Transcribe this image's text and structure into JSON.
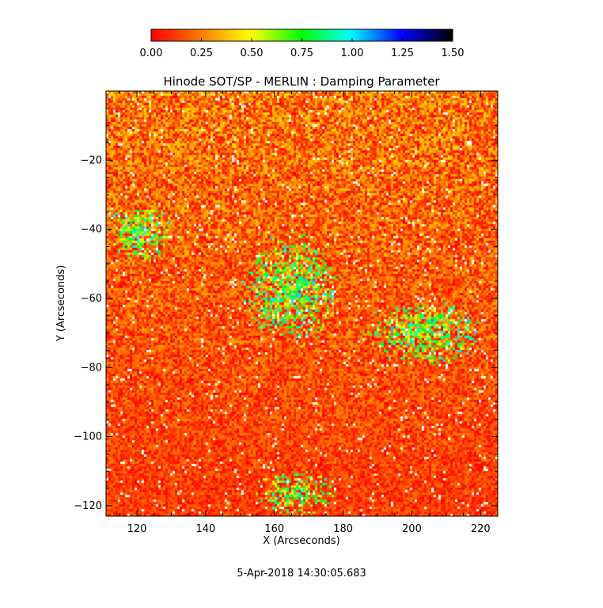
{
  "chart_data": {
    "type": "heatmap",
    "title": "Hinode SOT/SP - MERLIN : Damping Parameter",
    "xlabel": "X (Arcseconds)",
    "ylabel": "Y (Arcseconds)",
    "xlim": [
      111,
      225
    ],
    "ylim": [
      -123,
      0
    ],
    "x_ticks": [
      120,
      140,
      160,
      180,
      200,
      220
    ],
    "y_ticks": [
      -20,
      -40,
      -60,
      -80,
      -100,
      -120
    ],
    "colorbar": {
      "range": [
        0.0,
        1.5
      ],
      "ticks": [
        "0.00",
        "0.25",
        "0.50",
        "0.75",
        "1.00",
        "1.25",
        "1.50"
      ],
      "colormap": [
        "#ff0000",
        "#ff8000",
        "#ffff00",
        "#00ff00",
        "#00ffff",
        "#0000ff",
        "#000000"
      ],
      "placement": "top"
    },
    "background_value_range": [
      0.0,
      0.4
    ],
    "regions_elevated_damping": [
      {
        "x": [
          111,
          131
        ],
        "y": [
          -50,
          -32
        ],
        "value": 0.6
      },
      {
        "x": [
          150,
          180
        ],
        "y": [
          -75,
          -40
        ],
        "value": 0.6
      },
      {
        "x": [
          185,
          222
        ],
        "y": [
          -80,
          -60
        ],
        "value": 0.6
      },
      {
        "x": [
          153,
          180
        ],
        "y": [
          -123,
          -110
        ],
        "value": 0.6
      }
    ],
    "grid": false,
    "timestamp": "5-Apr-2018 14:30:05.683"
  }
}
